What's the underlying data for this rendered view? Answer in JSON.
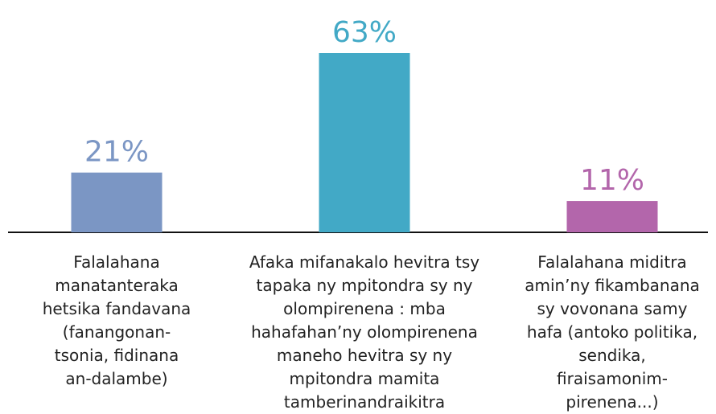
{
  "chart_data": {
    "type": "bar",
    "categories": [
      "Falalahana\nmanatanteraka\nhetsika fandavana\n(fanangonan-\ntsonia, fidinana\nan-dalambe)",
      "Afaka mifanakalo hevitra tsy\ntapaka ny mpitondra sy ny\nolompirenena : mba\nhahafahan’ny olompirenena\nmaneho hevitra sy ny\nmpitondra mamita\ntamberinandraikitra",
      "Falalahana miditra\namin’ny fikambanana\nsy vovonana samy\nhafa (antoko politika,\nsendika,\nfiraisamonim-\npirenena...)"
    ],
    "values": [
      21,
      63,
      11
    ],
    "value_labels": [
      "21%",
      "63%",
      "11%"
    ],
    "colors": [
      "#7b96c4",
      "#42a9c6",
      "#b366ab"
    ]
  }
}
